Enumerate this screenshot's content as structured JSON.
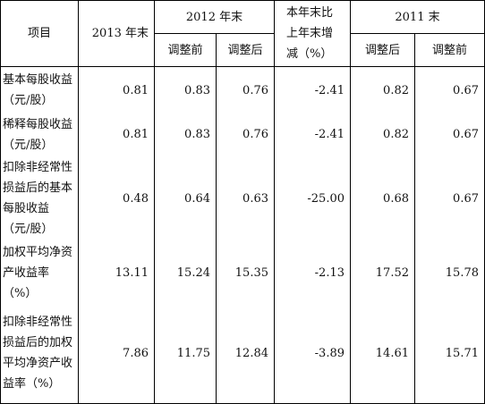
{
  "table": {
    "header": {
      "item": "项目",
      "y2013": "2013 年末",
      "y2012": "2012 年末",
      "y2012_before": "调整前",
      "y2012_after": "调整后",
      "change": "本年末比上年末增减（%）",
      "y2011": "2011 末",
      "y2011_after": "调整后",
      "y2011_before": "调整前"
    },
    "rows": [
      {
        "label": "基本每股收益（元/股）",
        "values": [
          "0.81",
          "0.83",
          "0.76",
          "-2.41",
          "0.82",
          "0.67"
        ]
      },
      {
        "label": "稀释每股收益（元/股）",
        "values": [
          "0.81",
          "0.83",
          "0.76",
          "-2.41",
          "0.82",
          "0.67"
        ]
      },
      {
        "label": "扣除非经常性损益后的基本每股收益（元/股）",
        "values": [
          "0.48",
          "0.64",
          "0.63",
          "-25.00",
          "0.68",
          "0.67"
        ]
      },
      {
        "label": "加权平均净资产收益率（%）",
        "values": [
          "13.11",
          "15.24",
          "15.35",
          "-2.13",
          "17.52",
          "15.78"
        ]
      },
      {
        "label": "扣除非经常性损益后的加权平均净资产收益率（%）",
        "values": [
          "7.86",
          "11.75",
          "12.84",
          "-3.89",
          "14.61",
          "15.71"
        ]
      }
    ]
  }
}
